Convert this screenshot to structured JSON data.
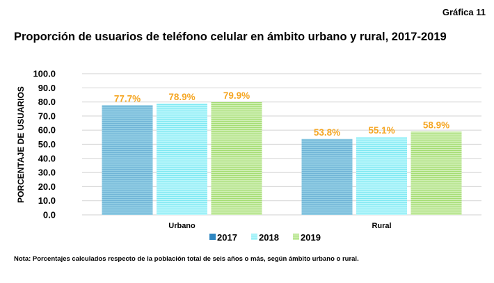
{
  "header": {
    "chart_number": "Gráfica 11",
    "title": "Proporción de usuarios de teléfono celular en ámbito urbano y rural, 2017-2019"
  },
  "note": "Nota: Porcentajes calculados respecto de la población total de seis años o más, según ámbito urbano o rural.",
  "chart_data": {
    "type": "bar",
    "title": "Proporción de usuarios de teléfono celular en ámbito urbano y rural, 2017-2019",
    "xlabel": "",
    "ylabel": "PORCENTAJE DE USUARIOS",
    "ylim": [
      0,
      100
    ],
    "yticks": [
      "0.0",
      "10.0",
      "20.0",
      "30.0",
      "40.0",
      "50.0",
      "60.0",
      "70.0",
      "80.0",
      "90.0",
      "100.0"
    ],
    "grid": true,
    "legend_position": "bottom",
    "categories": [
      "Urbano",
      "Rural"
    ],
    "series": [
      {
        "name": "2017",
        "values": [
          77.7,
          53.8
        ],
        "labels": [
          "77.7%",
          "53.8%"
        ],
        "color": "#8fcbe3",
        "stripe": "#6fb4d6"
      },
      {
        "name": "2018",
        "values": [
          78.9,
          55.1
        ],
        "labels": [
          "78.9%",
          "55.1%"
        ],
        "color": "#b7f6fb",
        "stripe": "#7fe8f2"
      },
      {
        "name": "2019",
        "values": [
          79.9,
          58.9
        ],
        "labels": [
          "79.9%",
          "58.9%"
        ],
        "color": "#cdeeb0",
        "stripe": "#a4dc72"
      }
    ],
    "data_label_color": "#f5a623"
  }
}
